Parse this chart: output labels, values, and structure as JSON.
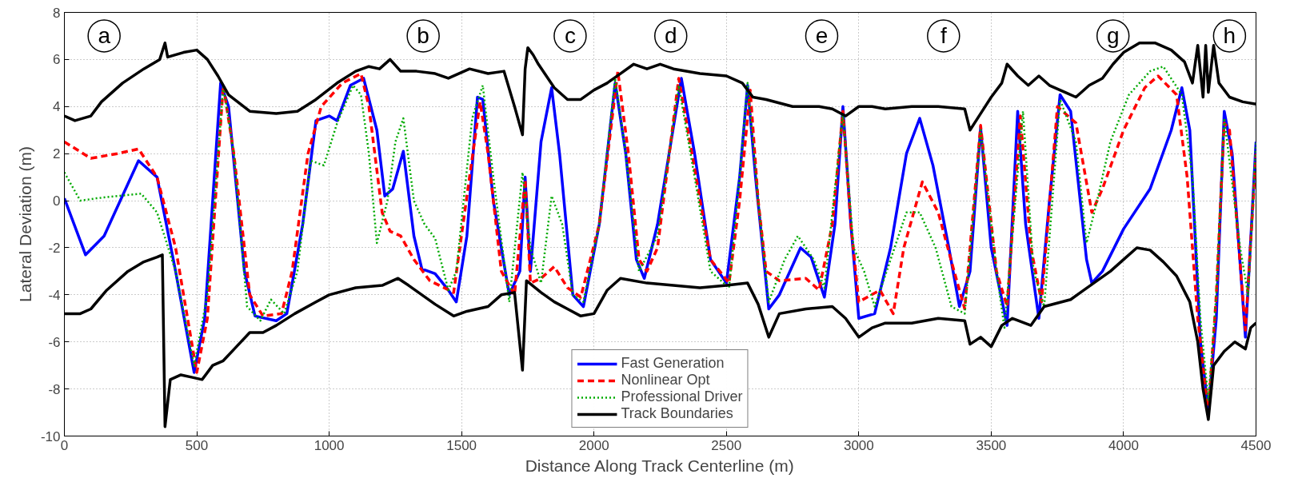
{
  "chart_data": {
    "type": "line",
    "xlabel": "Distance Along Track Centerline (m)",
    "ylabel": "Lateral Deviation (m)",
    "xlim": [
      0,
      4500
    ],
    "ylim": [
      -10,
      8
    ],
    "xticks": [
      0,
      500,
      1000,
      1500,
      2000,
      2500,
      3000,
      3500,
      4000,
      4500
    ],
    "yticks": [
      -10,
      -8,
      -6,
      -4,
      -2,
      0,
      2,
      4,
      6,
      8
    ],
    "grid": true,
    "legend": "bottom",
    "marker": "none",
    "annotations": [
      {
        "text": "a",
        "x": 150,
        "y": 7
      },
      {
        "text": "b",
        "x": 1355,
        "y": 7
      },
      {
        "text": "c",
        "x": 1910,
        "y": 7
      },
      {
        "text": "d",
        "x": 2290,
        "y": 7
      },
      {
        "text": "e",
        "x": 2860,
        "y": 7
      },
      {
        "text": "f",
        "x": 3320,
        "y": 7
      },
      {
        "text": "g",
        "x": 3960,
        "y": 7
      },
      {
        "text": "h",
        "x": 4400,
        "y": 7
      }
    ],
    "series": [
      {
        "name": "Fast Generation",
        "color": "#0000ff",
        "line_style": "solid",
        "x": [
          0,
          80,
          150,
          280,
          350,
          420,
          490,
          530,
          590,
          620,
          680,
          720,
          800,
          840,
          900,
          950,
          1000,
          1030,
          1080,
          1130,
          1180,
          1210,
          1240,
          1280,
          1320,
          1350,
          1400,
          1450,
          1480,
          1520,
          1560,
          1580,
          1620,
          1680,
          1720,
          1740,
          1760,
          1800,
          1840,
          1870,
          1920,
          1960,
          2020,
          2080,
          2120,
          2160,
          2190,
          2240,
          2330,
          2380,
          2440,
          2500,
          2550,
          2580,
          2610,
          2660,
          2700,
          2780,
          2820,
          2870,
          2910,
          2940,
          2970,
          3000,
          3060,
          3120,
          3180,
          3230,
          3280,
          3340,
          3380,
          3420,
          3460,
          3500,
          3560,
          3600,
          3630,
          3680,
          3720,
          3760,
          3800,
          3860,
          3880,
          3920,
          4000,
          4100,
          4180,
          4220,
          4250,
          4290,
          4320,
          4350,
          4380,
          4410,
          4460,
          4500
        ],
        "values": [
          0.1,
          -2.3,
          -1.5,
          1.7,
          1.0,
          -3,
          -7.3,
          -5,
          5.0,
          4,
          -3,
          -4.9,
          -5.1,
          -4.8,
          -1,
          3.4,
          3.6,
          3.4,
          4.9,
          5.2,
          3.0,
          0.2,
          0.5,
          2.1,
          -1.5,
          -2.9,
          -3.1,
          -3.8,
          -4.3,
          -1.5,
          4.4,
          4.3,
          0,
          -4.0,
          -3,
          1.0,
          -3.0,
          2.5,
          4.8,
          2,
          -4.0,
          -4.5,
          -1,
          5.0,
          2,
          -2.5,
          -3.3,
          -1,
          5.2,
          2,
          -2.5,
          -3.5,
          1,
          4.9,
          1,
          -4.6,
          -4.0,
          -2.0,
          -2.4,
          -4.1,
          -1,
          4.0,
          -1,
          -5,
          -4.8,
          -2,
          2,
          3.5,
          1.5,
          -2,
          -4.5,
          -3,
          3.1,
          -2,
          -5.3,
          3.8,
          -1,
          -5.0,
          0,
          4.5,
          3.8,
          -2.5,
          -3.5,
          -3,
          -1.2,
          0.5,
          3,
          4.8,
          3,
          -6,
          -8.9,
          -5,
          3.8,
          2,
          -5.8,
          2.5
        ]
      },
      {
        "name": "Nonlinear Opt",
        "color": "#ff0000",
        "line_style": "dashed",
        "x": [
          0,
          100,
          200,
          280,
          350,
          420,
          500,
          540,
          600,
          640,
          700,
          750,
          820,
          860,
          920,
          970,
          1050,
          1120,
          1150,
          1200,
          1230,
          1270,
          1320,
          1380,
          1470,
          1530,
          1570,
          1600,
          1650,
          1700,
          1740,
          1760,
          1800,
          1850,
          1900,
          1950,
          2020,
          2090,
          2130,
          2170,
          2200,
          2240,
          2320,
          2370,
          2440,
          2510,
          2550,
          2590,
          2620,
          2650,
          2700,
          2800,
          2850,
          2900,
          2940,
          2970,
          3000,
          3080,
          3130,
          3170,
          3240,
          3300,
          3360,
          3400,
          3460,
          3520,
          3560,
          3610,
          3650,
          3690,
          3750,
          3820,
          3880,
          3920,
          4000,
          4080,
          4130,
          4200,
          4240,
          4280,
          4320,
          4350,
          4380,
          4400,
          4460,
          4500
        ],
        "values": [
          2.5,
          1.8,
          2.0,
          2.2,
          1.0,
          -2.0,
          -7.3,
          -5,
          4.9,
          2,
          -4,
          -4.9,
          -4.8,
          -3,
          2,
          4.0,
          5.0,
          5.4,
          4,
          -0.5,
          -1.3,
          -1.5,
          -2.5,
          -3.4,
          -3.9,
          1,
          4.2,
          2,
          -3,
          -4,
          0.9,
          -3.5,
          -3.3,
          -2.8,
          -3.7,
          -4.1,
          -1,
          5.5,
          2,
          -2.5,
          -3,
          -2,
          5.2,
          2,
          -2.5,
          -3.5,
          0,
          4.7,
          0,
          -3,
          -3.4,
          -3.3,
          -3.8,
          -1,
          3.8,
          -1,
          -4.3,
          -3.8,
          -4.8,
          -2,
          0.8,
          -0.5,
          -3,
          -4.6,
          3.2,
          -3,
          -4.5,
          3.6,
          -2,
          -4.3,
          4.0,
          3.3,
          -0.5,
          0.5,
          3.0,
          4.8,
          5.3,
          4.5,
          1,
          -5,
          -9.0,
          -4,
          3.3,
          3,
          -5.5,
          2.0
        ]
      },
      {
        "name": "Professional Driver",
        "color": "#00aa00",
        "line_style": "dotted",
        "x": [
          0,
          60,
          120,
          200,
          290,
          350,
          420,
          490,
          540,
          600,
          640,
          690,
          740,
          780,
          830,
          880,
          930,
          980,
          1030,
          1090,
          1120,
          1150,
          1180,
          1220,
          1250,
          1280,
          1320,
          1360,
          1400,
          1450,
          1480,
          1540,
          1580,
          1620,
          1680,
          1730,
          1760,
          1800,
          1840,
          1880,
          1920,
          1960,
          2020,
          2080,
          2120,
          2170,
          2240,
          2320,
          2380,
          2440,
          2510,
          2550,
          2580,
          2620,
          2660,
          2720,
          2770,
          2830,
          2870,
          2940,
          2980,
          3020,
          3060,
          3120,
          3180,
          3230,
          3290,
          3350,
          3400,
          3460,
          3520,
          3550,
          3620,
          3660,
          3700,
          3760,
          3820,
          3860,
          3900,
          3950,
          4020,
          4100,
          4150,
          4220,
          4260,
          4290,
          4320,
          4350,
          4380,
          4440,
          4470,
          4500
        ],
        "values": [
          1.2,
          0.0,
          0.1,
          0.2,
          0.3,
          -0.5,
          -3,
          -7,
          -4,
          4.9,
          2,
          -4.5,
          -5.1,
          -4.2,
          -4.8,
          -3,
          1.7,
          1.5,
          3.3,
          4.9,
          4.5,
          2,
          -1.8,
          0,
          2.5,
          3.5,
          0,
          -1.0,
          -1.6,
          -3.8,
          -3,
          3.5,
          4.9,
          1,
          -4.3,
          1.2,
          -2,
          -3.5,
          0.2,
          -1,
          -4.0,
          -4.3,
          -1,
          5.2,
          2,
          -3,
          -1.5,
          4.9,
          1,
          -3,
          -3.7,
          1,
          5.0,
          0,
          -4.3,
          -2.5,
          -1.5,
          -2.5,
          -3.7,
          3.7,
          -2,
          -3,
          -4.5,
          -2.5,
          -0.5,
          -0.5,
          -2,
          -4.5,
          -4.8,
          3.0,
          -3,
          -5.4,
          3.8,
          -3,
          -4.5,
          4.3,
          2.5,
          -1.8,
          0,
          2.5,
          4.5,
          5.5,
          5.7,
          4.5,
          1,
          -5,
          -8.5,
          -4,
          3.5,
          -2,
          -4,
          2.5
        ]
      },
      {
        "name": "Track Boundaries",
        "color": "#000000",
        "line_style": "solid",
        "x": [
          0,
          40,
          100,
          140,
          220,
          300,
          360,
          380,
          390,
          450,
          500,
          540,
          580,
          620,
          700,
          800,
          880,
          950,
          1030,
          1100,
          1150,
          1190,
          1230,
          1270,
          1330,
          1400,
          1450,
          1530,
          1600,
          1660,
          1700,
          1730,
          1740,
          1750,
          1770,
          1790,
          1850,
          1900,
          1950,
          2000,
          2050,
          2100,
          2150,
          2200,
          2250,
          2300,
          2400,
          2500,
          2560,
          2600,
          2650,
          2750,
          2850,
          2900,
          2950,
          3000,
          3050,
          3100,
          3200,
          3300,
          3400,
          3420,
          3460,
          3500,
          3540,
          3560,
          3600,
          3640,
          3680,
          3720,
          3780,
          3820,
          3870,
          3920,
          3960,
          4000,
          4060,
          4120,
          4180,
          4230,
          4260,
          4280,
          4300,
          4310,
          4320,
          4340,
          4360,
          4400,
          4450,
          4500
        ],
        "values": [
          3.6,
          3.4,
          3.6,
          4.2,
          5.0,
          5.6,
          6.0,
          6.7,
          6.1,
          6.3,
          6.4,
          6.0,
          5.3,
          4.5,
          3.8,
          3.7,
          3.8,
          4.3,
          5.0,
          5.5,
          5.7,
          5.6,
          6.0,
          5.5,
          5.5,
          5.4,
          5.2,
          5.6,
          5.4,
          5.5,
          4.0,
          2.8,
          5.6,
          6.5,
          6.2,
          5.8,
          4.8,
          4.3,
          4.3,
          4.7,
          5.0,
          5.4,
          5.8,
          5.6,
          5.8,
          5.6,
          5.4,
          5.3,
          5.0,
          4.4,
          4.3,
          4.0,
          4.0,
          3.9,
          3.6,
          4.0,
          4.0,
          3.9,
          4.0,
          4.0,
          3.9,
          3.0,
          3.7,
          4.4,
          5.0,
          5.8,
          5.3,
          4.9,
          5.3,
          4.9,
          4.6,
          4.4,
          4.9,
          5.2,
          5.8,
          6.3,
          6.7,
          6.7,
          6.4,
          5.9,
          5.0,
          6.6,
          4.4,
          6.6,
          4.6,
          6.6,
          5.0,
          4.4,
          4.2,
          4.1
        ]
      },
      {
        "color": "#000000",
        "line_style": "solid",
        "x": [
          0,
          60,
          100,
          160,
          240,
          300,
          350,
          370,
          380,
          400,
          440,
          480,
          520,
          560,
          600,
          650,
          700,
          750,
          800,
          870,
          950,
          1000,
          1100,
          1200,
          1260,
          1300,
          1400,
          1470,
          1520,
          1600,
          1650,
          1700,
          1730,
          1745,
          1800,
          1850,
          1900,
          1950,
          2000,
          2050,
          2100,
          2200,
          2300,
          2400,
          2500,
          2580,
          2620,
          2660,
          2700,
          2800,
          2900,
          2950,
          3000,
          3050,
          3100,
          3200,
          3300,
          3400,
          3420,
          3460,
          3500,
          3540,
          3580,
          3650,
          3700,
          3800,
          3850,
          3900,
          3950,
          4000,
          4050,
          4100,
          4150,
          4200,
          4250,
          4280,
          4300,
          4320,
          4340,
          4380,
          4420,
          4460,
          4480,
          4500
        ],
        "values": [
          -4.8,
          -4.8,
          -4.6,
          -3.8,
          -3.0,
          -2.6,
          -2.4,
          -2.3,
          -9.6,
          -7.6,
          -7.4,
          -7.5,
          -7.6,
          -7.0,
          -6.8,
          -6.2,
          -5.6,
          -5.6,
          -5.3,
          -4.8,
          -4.3,
          -4.0,
          -3.7,
          -3.6,
          -3.3,
          -3.6,
          -4.4,
          -4.9,
          -4.7,
          -4.5,
          -4.0,
          -3.9,
          -7.2,
          -3.4,
          -3.9,
          -4.3,
          -4.6,
          -4.9,
          -4.8,
          -3.8,
          -3.3,
          -3.5,
          -3.6,
          -3.7,
          -3.6,
          -3.5,
          -4.4,
          -5.8,
          -4.8,
          -4.6,
          -4.5,
          -5.0,
          -5.8,
          -5.4,
          -5.2,
          -5.2,
          -5.0,
          -5.1,
          -6.1,
          -5.8,
          -6.2,
          -5.3,
          -5.0,
          -5.3,
          -4.5,
          -4.2,
          -3.8,
          -3.4,
          -3.0,
          -2.5,
          -2.0,
          -2.1,
          -2.6,
          -3.2,
          -4.3,
          -6.0,
          -8.0,
          -9.3,
          -7.0,
          -6.4,
          -6.0,
          -6.3,
          -5.4,
          -5.2
        ]
      }
    ]
  }
}
